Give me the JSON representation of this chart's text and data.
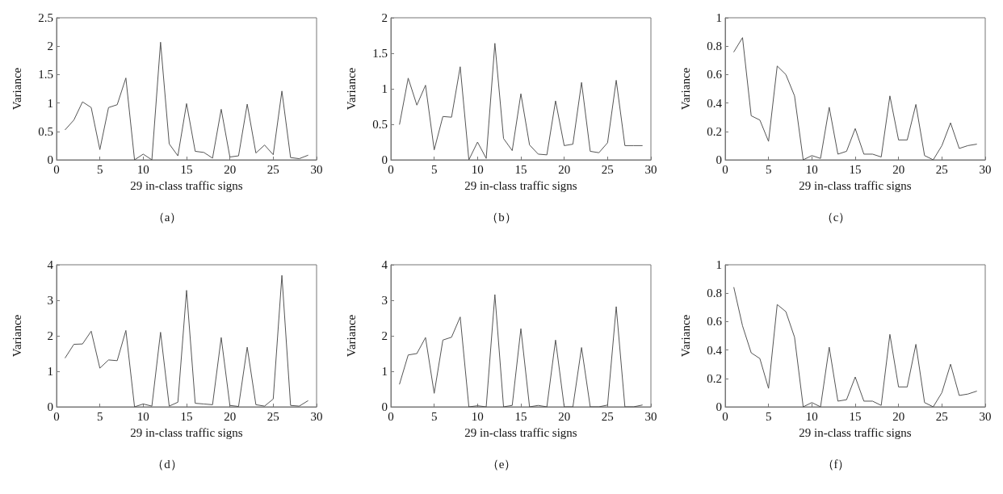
{
  "chart_data": [
    {
      "type": "line",
      "title": "（a）",
      "xlabel": "29 in-class traffic signs",
      "ylabel": "Variance",
      "x": [
        1,
        2,
        3,
        4,
        5,
        6,
        7,
        8,
        9,
        10,
        11,
        12,
        13,
        14,
        15,
        16,
        17,
        18,
        19,
        20,
        21,
        22,
        23,
        24,
        25,
        26,
        27,
        28,
        29
      ],
      "series": [
        {
          "color": "#555555",
          "values": [
            0.53,
            0.7,
            1.02,
            0.92,
            0.18,
            0.92,
            0.97,
            1.44,
            0,
            0.1,
            0,
            2.07,
            0.28,
            0.07,
            0.99,
            0.15,
            0.13,
            0.03,
            0.89,
            0.05,
            0.07,
            0.98,
            0.12,
            0.26,
            0.09,
            1.21,
            0.04,
            0.02,
            0.08
          ]
        }
      ],
      "xlim": [
        0,
        30
      ],
      "xticks": [
        0,
        5,
        10,
        15,
        20,
        25,
        30
      ],
      "ylim": [
        0,
        2.5
      ],
      "yticks": [
        0,
        0.5,
        1,
        1.5,
        2,
        2.5
      ],
      "marker": "none",
      "line_style": "solid"
    },
    {
      "type": "line",
      "title": "（b）",
      "xlabel": "29 in-class traffic signs",
      "ylabel": "Variance",
      "x": [
        1,
        2,
        3,
        4,
        5,
        6,
        7,
        8,
        9,
        10,
        11,
        12,
        13,
        14,
        15,
        16,
        17,
        18,
        19,
        20,
        21,
        22,
        23,
        24,
        25,
        26,
        27,
        28,
        29
      ],
      "series": [
        {
          "color": "#555555",
          "values": [
            0.5,
            1.15,
            0.77,
            1.05,
            0.14,
            0.61,
            0.6,
            1.31,
            0,
            0.25,
            0.02,
            1.64,
            0.3,
            0.13,
            0.93,
            0.21,
            0.08,
            0.07,
            0.83,
            0.2,
            0.22,
            1.09,
            0.12,
            0.1,
            0.24,
            1.12,
            0.2,
            0.2,
            0.2
          ]
        }
      ],
      "xlim": [
        0,
        30
      ],
      "xticks": [
        0,
        5,
        10,
        15,
        20,
        25,
        30
      ],
      "ylim": [
        0,
        2
      ],
      "yticks": [
        0,
        0.5,
        1,
        1.5,
        2
      ],
      "marker": "none",
      "line_style": "solid"
    },
    {
      "type": "line",
      "title": "（c）",
      "xlabel": "29 in-class traffic signs",
      "ylabel": "Variance",
      "x": [
        1,
        2,
        3,
        4,
        5,
        6,
        7,
        8,
        9,
        10,
        11,
        12,
        13,
        14,
        15,
        16,
        17,
        18,
        19,
        20,
        21,
        22,
        23,
        24,
        25,
        26,
        27,
        28,
        29
      ],
      "series": [
        {
          "color": "#555555",
          "values": [
            0.76,
            0.86,
            0.31,
            0.28,
            0.13,
            0.66,
            0.6,
            0.45,
            0,
            0.03,
            0.01,
            0.37,
            0.04,
            0.06,
            0.22,
            0.04,
            0.04,
            0.02,
            0.45,
            0.14,
            0.14,
            0.39,
            0.03,
            0,
            0.1,
            0.26,
            0.08,
            0.1,
            0.11
          ]
        }
      ],
      "xlim": [
        0,
        30
      ],
      "xticks": [
        0,
        5,
        10,
        15,
        20,
        25,
        30
      ],
      "ylim": [
        0,
        1
      ],
      "yticks": [
        0,
        0.2,
        0.4,
        0.6,
        0.8,
        1
      ],
      "marker": "none",
      "line_style": "solid"
    },
    {
      "type": "line",
      "title": "（d）",
      "xlabel": "29 in-class traffic signs",
      "ylabel": "Variance",
      "x": [
        1,
        2,
        3,
        4,
        5,
        6,
        7,
        8,
        9,
        10,
        11,
        12,
        13,
        14,
        15,
        16,
        17,
        18,
        19,
        20,
        21,
        22,
        23,
        24,
        25,
        26,
        27,
        28,
        29
      ],
      "series": [
        {
          "color": "#555555",
          "values": [
            1.38,
            1.76,
            1.77,
            2.13,
            1.09,
            1.32,
            1.3,
            2.15,
            0,
            0.08,
            0.02,
            2.1,
            0.02,
            0.13,
            3.28,
            0.1,
            0.08,
            0.06,
            1.95,
            0.04,
            0.01,
            1.68,
            0.06,
            0.02,
            0.22,
            3.7,
            0.04,
            0.02,
            0.17
          ]
        }
      ],
      "xlim": [
        0,
        30
      ],
      "xticks": [
        0,
        5,
        10,
        15,
        20,
        25,
        30
      ],
      "ylim": [
        0,
        4
      ],
      "yticks": [
        0,
        1,
        2,
        3,
        4
      ],
      "marker": "none",
      "line_style": "solid"
    },
    {
      "type": "line",
      "title": "（e）",
      "xlabel": "29 in-class traffic signs",
      "ylabel": "Variance",
      "x": [
        1,
        2,
        3,
        4,
        5,
        6,
        7,
        8,
        9,
        10,
        11,
        12,
        13,
        14,
        15,
        16,
        17,
        18,
        19,
        20,
        21,
        22,
        23,
        24,
        25,
        26,
        27,
        28,
        29
      ],
      "series": [
        {
          "color": "#555555",
          "values": [
            0.64,
            1.46,
            1.5,
            1.95,
            0.38,
            1.88,
            1.96,
            2.53,
            0,
            0.03,
            0,
            3.16,
            0,
            0.04,
            2.2,
            0,
            0.04,
            0,
            1.88,
            0,
            0,
            1.67,
            0,
            0,
            0.05,
            2.82,
            0,
            0,
            0.05
          ]
        }
      ],
      "xlim": [
        0,
        30
      ],
      "xticks": [
        0,
        5,
        10,
        15,
        20,
        25,
        30
      ],
      "ylim": [
        0,
        4
      ],
      "yticks": [
        0,
        1,
        2,
        3,
        4
      ],
      "marker": "none",
      "line_style": "solid"
    },
    {
      "type": "line",
      "title": "（f）",
      "xlabel": "29 in-class traffic signs",
      "ylabel": "Variance",
      "x": [
        1,
        2,
        3,
        4,
        5,
        6,
        7,
        8,
        9,
        10,
        11,
        12,
        13,
        14,
        15,
        16,
        17,
        18,
        19,
        20,
        21,
        22,
        23,
        24,
        25,
        26,
        27,
        28,
        29
      ],
      "series": [
        {
          "color": "#555555",
          "values": [
            0.84,
            0.57,
            0.38,
            0.34,
            0.13,
            0.72,
            0.67,
            0.49,
            0,
            0.03,
            0,
            0.42,
            0.04,
            0.05,
            0.21,
            0.04,
            0.04,
            0.01,
            0.51,
            0.14,
            0.14,
            0.44,
            0.03,
            0,
            0.1,
            0.3,
            0.08,
            0.09,
            0.11
          ]
        }
      ],
      "xlim": [
        0,
        30
      ],
      "xticks": [
        0,
        5,
        10,
        15,
        20,
        25,
        30
      ],
      "ylim": [
        0,
        1
      ],
      "yticks": [
        0,
        0.2,
        0.4,
        0.6,
        0.8,
        1
      ],
      "marker": "none",
      "line_style": "solid"
    }
  ]
}
